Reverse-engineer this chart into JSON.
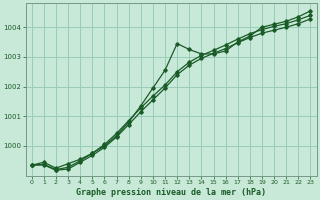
{
  "xlabel": "Graphe pression niveau de la mer (hPa)",
  "background_color": "#c8e8d8",
  "grid_color": "#99ccbb",
  "line_color": "#1a5c28",
  "xlim": [
    -0.5,
    23.5
  ],
  "ylim": [
    999.0,
    1004.8
  ],
  "yticks": [
    1000,
    1001,
    1002,
    1003,
    1004
  ],
  "xticks": [
    0,
    1,
    2,
    3,
    4,
    5,
    6,
    7,
    8,
    9,
    10,
    11,
    12,
    13,
    14,
    15,
    16,
    17,
    18,
    19,
    20,
    21,
    22,
    23
  ],
  "series1": [
    999.35,
    999.45,
    999.25,
    999.4,
    999.55,
    999.75,
    1000.0,
    1000.35,
    1000.8,
    1001.35,
    1001.95,
    1002.55,
    1003.45,
    1003.25,
    1003.1,
    1003.1,
    1003.2,
    1003.5,
    1003.7,
    1004.0,
    1004.1,
    1004.2,
    1004.35,
    1004.55
  ],
  "series2": [
    999.35,
    999.38,
    999.2,
    999.28,
    999.5,
    999.75,
    1000.05,
    1000.42,
    1000.85,
    1001.28,
    1001.68,
    1002.05,
    1002.5,
    1002.82,
    1003.05,
    1003.22,
    1003.4,
    1003.6,
    1003.78,
    1003.92,
    1004.03,
    1004.12,
    1004.25,
    1004.4
  ],
  "series3": [
    999.35,
    999.36,
    999.18,
    999.22,
    999.45,
    999.68,
    999.95,
    1000.3,
    1000.72,
    1001.15,
    1001.55,
    1001.95,
    1002.4,
    1002.72,
    1002.95,
    1003.12,
    1003.28,
    1003.48,
    1003.65,
    1003.8,
    1003.9,
    1004.0,
    1004.12,
    1004.28
  ]
}
